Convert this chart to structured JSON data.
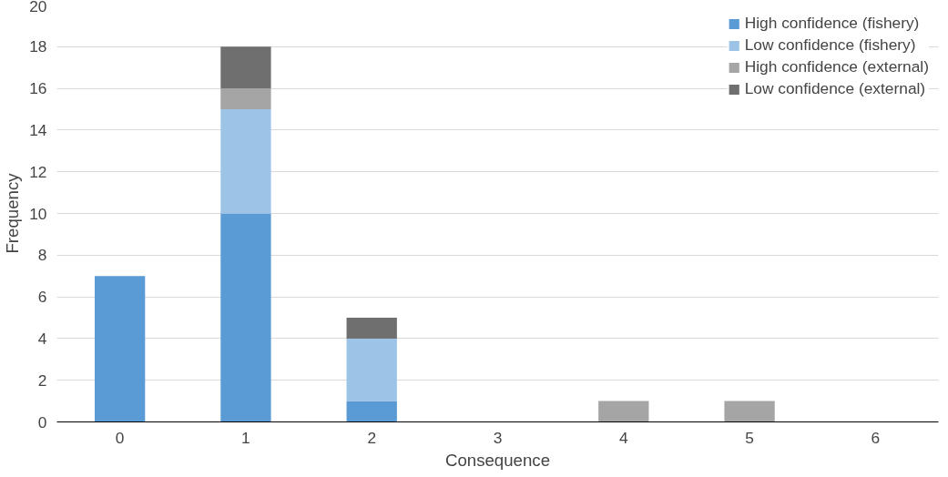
{
  "chart_data": {
    "type": "bar",
    "stacked": true,
    "xlabel": "Consequence",
    "ylabel": "Frequency",
    "categories": [
      "0",
      "1",
      "2",
      "3",
      "4",
      "5",
      "6"
    ],
    "series": [
      {
        "name": "High confidence (fishery)",
        "color": "#5b9bd5",
        "values": [
          7,
          10,
          1,
          0,
          0,
          0,
          0
        ]
      },
      {
        "name": "Low confidence (fishery)",
        "color": "#9dc3e6",
        "values": [
          0,
          5,
          3,
          0,
          0,
          0,
          0
        ]
      },
      {
        "name": "High confidence (external)",
        "color": "#a5a5a5",
        "values": [
          0,
          1,
          0,
          0,
          1,
          1,
          0
        ]
      },
      {
        "name": "Low confidence (external)",
        "color": "#6f6f6f",
        "values": [
          0,
          2,
          1,
          0,
          0,
          0,
          0
        ]
      }
    ],
    "ylim": [
      0,
      20
    ],
    "yticks": [
      0,
      2,
      4,
      6,
      8,
      10,
      12,
      14,
      16,
      18,
      20
    ],
    "grid": "y",
    "legend": "top right"
  }
}
